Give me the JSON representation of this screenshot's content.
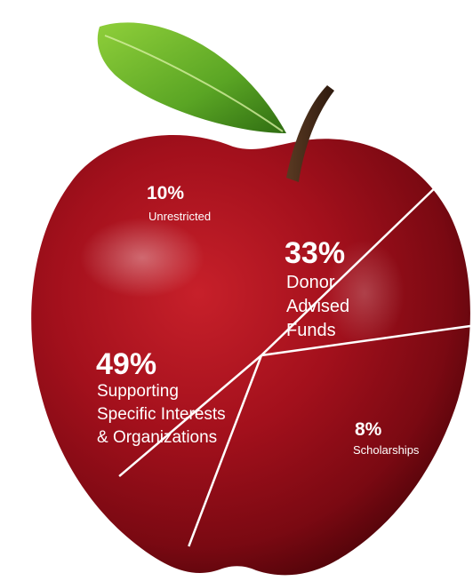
{
  "chart_data": {
    "type": "pie",
    "title": "",
    "slices": [
      {
        "label": "Unrestricted",
        "value": 10,
        "value_label": "10%"
      },
      {
        "label": "Donor Advised Funds",
        "value": 33,
        "value_label": "33%"
      },
      {
        "label": "Scholarships",
        "value": 8,
        "value_label": "8%"
      },
      {
        "label": "Supporting Specific Interests & Organizations",
        "value": 49,
        "value_label": "49%"
      }
    ],
    "legend": "none",
    "style": "pie drawn over an apple illustration with white divider lines",
    "colors": {
      "apple": "#a3101c",
      "leaf": "#5aa524",
      "divider": "#ffffff",
      "text": "#ffffff"
    }
  },
  "labels": {
    "unrestricted": {
      "pct": "10%",
      "lines": [
        "Unrestricted"
      ]
    },
    "donor": {
      "pct": "33%",
      "lines": [
        "Donor",
        "Advised",
        "Funds"
      ]
    },
    "scholarships": {
      "pct": "8%",
      "lines": [
        "Scholarships"
      ]
    },
    "supporting": {
      "pct": "49%",
      "lines": [
        "Supporting",
        "Specific Interests",
        "& Organizations"
      ]
    }
  }
}
